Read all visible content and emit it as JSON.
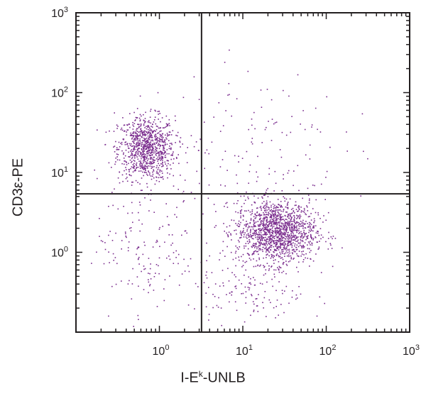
{
  "chart_data": {
    "type": "scatter",
    "xscale": "log",
    "yscale": "log",
    "xlim": [
      0.1,
      1000
    ],
    "ylim": [
      0.1,
      1000
    ],
    "grid": false,
    "xlabel": {
      "base": "I-E",
      "sup": "k",
      "tail": "-UNLB"
    },
    "ylabel": "CD3ε-PE",
    "xticks": [
      {
        "value": 1,
        "base": "10",
        "exp": "0"
      },
      {
        "value": 10,
        "base": "10",
        "exp": "1"
      },
      {
        "value": 100,
        "base": "10",
        "exp": "2"
      },
      {
        "value": 1000,
        "base": "10",
        "exp": "3"
      }
    ],
    "yticks": [
      {
        "value": 1,
        "base": "10",
        "exp": "0"
      },
      {
        "value": 10,
        "base": "10",
        "exp": "1"
      },
      {
        "value": 100,
        "base": "10",
        "exp": "2"
      },
      {
        "value": 1000,
        "base": "10",
        "exp": "3"
      }
    ],
    "quadrant_gates": {
      "x": 3.2,
      "y": 5.4
    },
    "dot_color": "#7b2d8e",
    "populations": [
      {
        "n": 900,
        "center": [
          0.7,
          20
        ],
        "spread_log10": [
          0.17,
          0.2
        ]
      },
      {
        "n": 1400,
        "center": [
          25,
          1.8
        ],
        "spread_log10": [
          0.24,
          0.2
        ]
      },
      {
        "n": 160,
        "center": [
          0.7,
          1.2
        ],
        "spread_log10": [
          0.3,
          0.45
        ]
      },
      {
        "n": 150,
        "center": [
          12,
          20
        ],
        "spread_log10": [
          0.55,
          0.5
        ]
      },
      {
        "n": 120,
        "center": [
          12,
          0.3
        ],
        "spread_log10": [
          0.35,
          0.2
        ]
      }
    ]
  }
}
